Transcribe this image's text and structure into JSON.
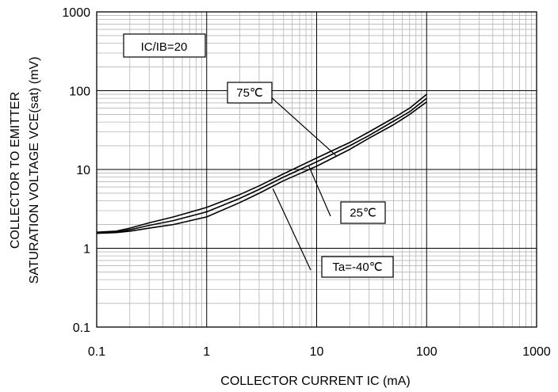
{
  "chart_data": {
    "type": "line",
    "title": "",
    "xlabel": "COLLECTOR CURRENT IC (mA)",
    "ylabel_line1": "COLLECTOR TO EMITTER",
    "ylabel_line2": "SATURATION VOLTAGE VCE(sat) (mV)",
    "xscale": "log",
    "yscale": "log",
    "xlim": [
      0.1,
      1000
    ],
    "ylim": [
      0.1,
      1000
    ],
    "grid": true,
    "x_ticks": [
      0.1,
      1,
      10,
      100,
      1000
    ],
    "y_ticks": [
      0.1,
      1,
      10,
      100,
      1000
    ],
    "x_tick_labels": [
      "0.1",
      "1",
      "10",
      "100",
      "1000"
    ],
    "y_tick_labels": [
      "0.1",
      "1",
      "10",
      "100",
      "1000"
    ],
    "condition_label": "IC/IB=20",
    "series": [
      {
        "name": "75℃",
        "x": [
          0.1,
          0.15,
          0.2,
          0.3,
          0.5,
          1,
          2,
          3,
          5,
          10,
          20,
          30,
          50,
          70,
          100
        ],
        "y": [
          1.6,
          1.65,
          1.8,
          2.1,
          2.5,
          3.3,
          4.8,
          6.2,
          8.8,
          14,
          22,
          30,
          45,
          60,
          90
        ]
      },
      {
        "name": "25℃",
        "x": [
          0.1,
          0.15,
          0.2,
          0.3,
          0.5,
          1,
          2,
          3,
          5,
          10,
          20,
          30,
          50,
          70,
          100
        ],
        "y": [
          1.55,
          1.6,
          1.72,
          1.95,
          2.25,
          2.9,
          4.3,
          5.6,
          8.0,
          12.5,
          20,
          27,
          41,
          54,
          80
        ]
      },
      {
        "name": "Ta=-40℃",
        "x": [
          0.1,
          0.15,
          0.2,
          0.3,
          0.5,
          1,
          2,
          3,
          5,
          10,
          20,
          30,
          50,
          70,
          100
        ],
        "y": [
          1.55,
          1.58,
          1.65,
          1.8,
          2.0,
          2.5,
          3.8,
          5.0,
          7.2,
          11,
          18,
          25,
          37,
          50,
          72
        ]
      }
    ]
  }
}
